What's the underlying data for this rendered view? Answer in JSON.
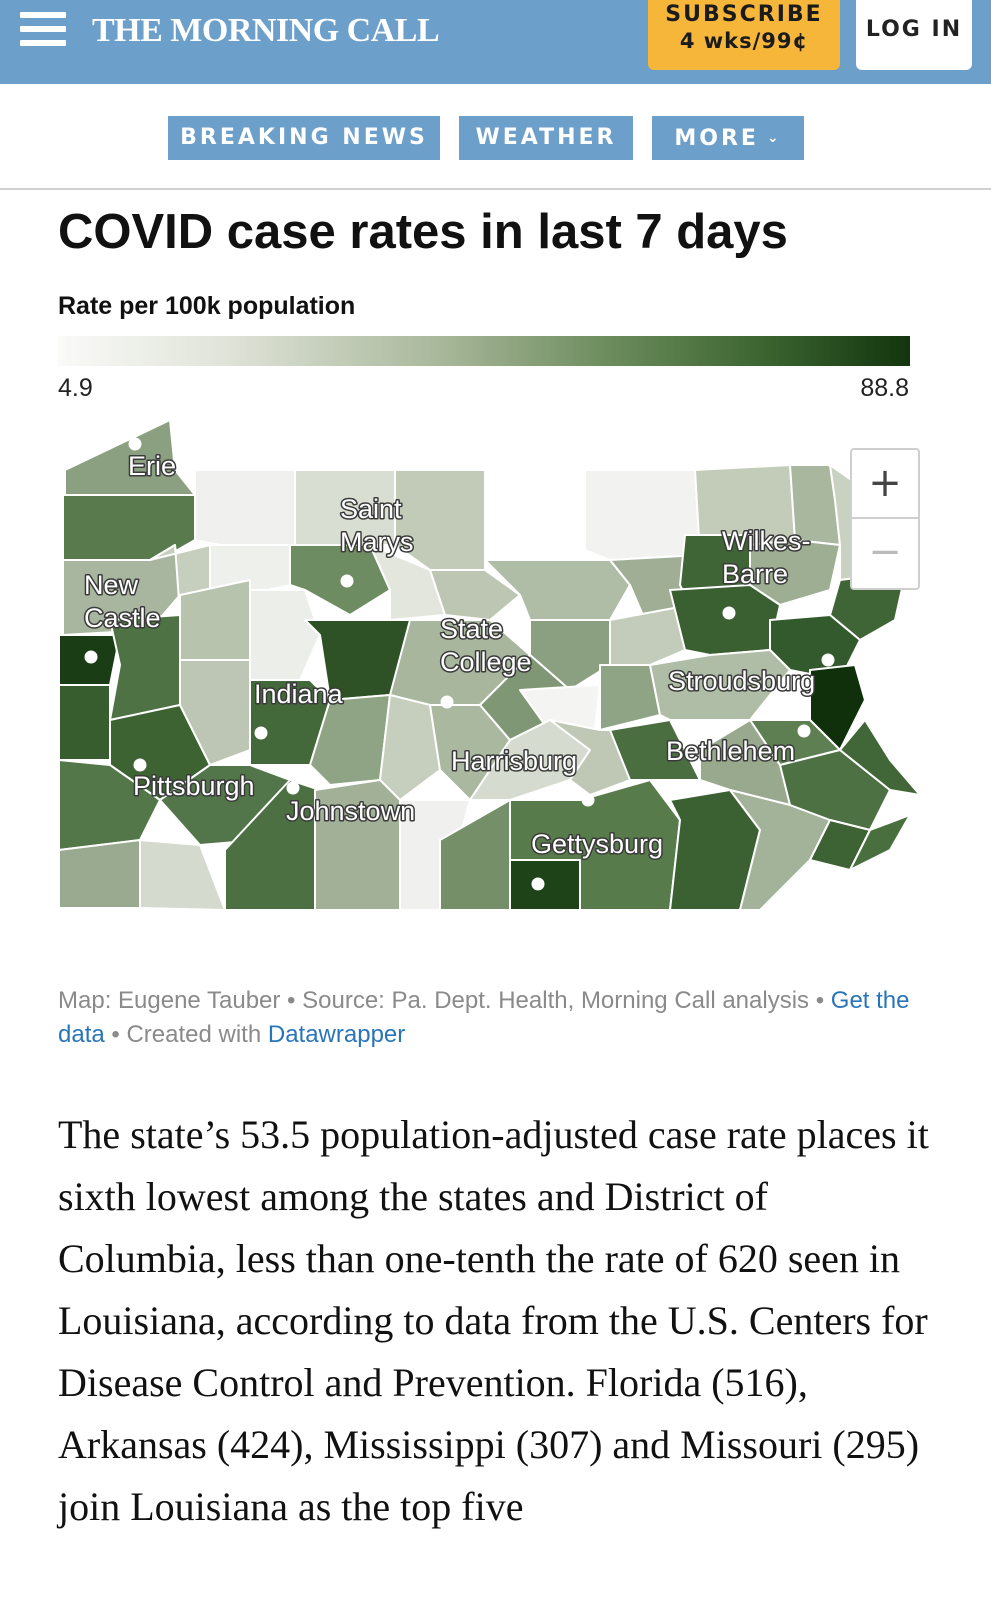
{
  "header": {
    "brand": "THE MORNING CALL",
    "subscribe_line1": "SUBSCRIBE",
    "subscribe_line2": "4 wks/99¢",
    "login_label": "LOG IN",
    "menu_icon": "hamburger-icon"
  },
  "nav": {
    "items": [
      {
        "label": "BREAKING NEWS"
      },
      {
        "label": "WEATHER"
      },
      {
        "label": "MORE"
      }
    ],
    "more_icon": "chevron-down-icon"
  },
  "map": {
    "title": "COVID case rates in last 7 days",
    "legend_title": "Rate per 100k population",
    "legend_min": "4.9",
    "legend_max": "88.8",
    "color_low": "#fafaf8",
    "color_high": "#13350e",
    "cities": [
      {
        "label": "Erie"
      },
      {
        "label": "Saint Marys"
      },
      {
        "label": "New Castle"
      },
      {
        "label": "State College"
      },
      {
        "label": "Wilkes-Barre"
      },
      {
        "label": "Indiana"
      },
      {
        "label": "Stroudsburg"
      },
      {
        "label": "Pittsburgh"
      },
      {
        "label": "Johnstown"
      },
      {
        "label": "Harrisburg"
      },
      {
        "label": "Bethlehem"
      },
      {
        "label": "Gettysburg"
      }
    ],
    "zoom_in_label": "+",
    "zoom_out_label": "−"
  },
  "credit": {
    "prefix": "Map: Eugene Tauber • Source: Pa. Dept. Health, Morning Call analysis • ",
    "get_data": "Get the data",
    "middle": " • Created with ",
    "tool": "Datawrapper"
  },
  "article": {
    "text": "The state’s 53.5 population-adjusted case rate places it sixth lowest among the states and District of Columbia, less than one-tenth the rate of 620 seen in Louisiana, according to data from the U.S. Centers for Disease Control and Prevention. Florida (516), Arkansas (424), Mississippi (307) and Missouri (295) join Louisiana as the top five"
  }
}
